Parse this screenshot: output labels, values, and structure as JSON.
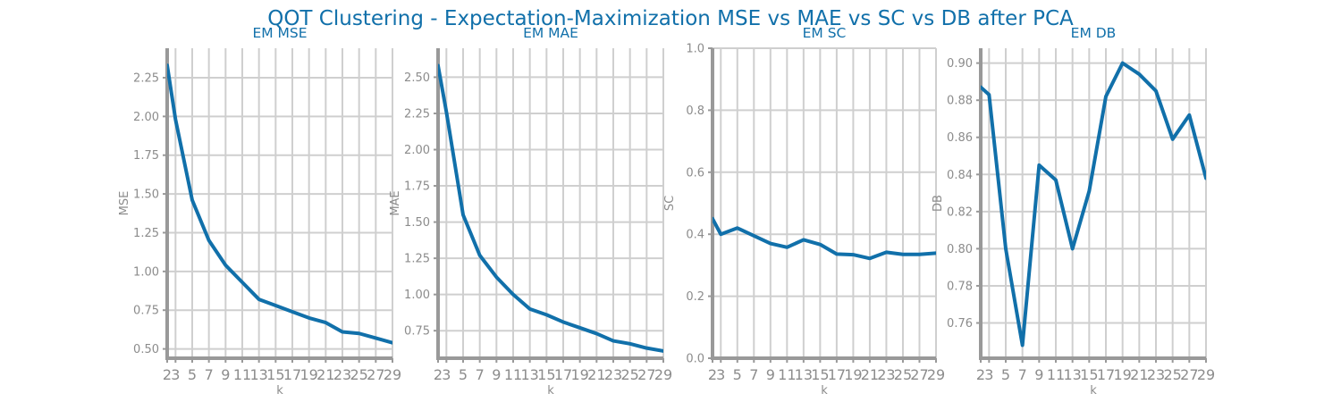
{
  "title": "QOT Clustering - Expectation-Maximization MSE vs MAE vs SC vs DB after PCA",
  "style": {
    "line_color": "#1170aa",
    "title_color": "#1170aa",
    "grid_color": "#cfcfcf",
    "spine_color": "#999999",
    "tick_color": "#8c8c8c"
  },
  "chart_data": [
    {
      "type": "line",
      "title": "EM MSE",
      "xlabel": "k",
      "ylabel": "MSE",
      "x": [
        2,
        3,
        5,
        7,
        9,
        11,
        13,
        15,
        17,
        19,
        21,
        23,
        25,
        27,
        29
      ],
      "y": [
        2.33,
        1.98,
        1.46,
        1.2,
        1.04,
        0.93,
        0.82,
        0.78,
        0.74,
        0.7,
        0.67,
        0.61,
        0.6,
        0.57,
        0.54
      ],
      "xticks": [
        2,
        3,
        5,
        7,
        9,
        11,
        13,
        15,
        17,
        19,
        21,
        23,
        25,
        27,
        29
      ],
      "yticks": [
        0.5,
        0.75,
        1.0,
        1.25,
        1.5,
        1.75,
        2.0,
        2.25
      ],
      "ytick_labels": [
        "0.50",
        "0.75",
        "1.00",
        "1.25",
        "1.50",
        "1.75",
        "2.00",
        "2.25"
      ],
      "xlim": [
        2,
        29
      ],
      "ylim": [
        0.44,
        2.44
      ],
      "grid": true
    },
    {
      "type": "line",
      "title": "EM MAE",
      "xlabel": "k",
      "ylabel": "MAE",
      "x": [
        2,
        3,
        5,
        7,
        9,
        11,
        13,
        15,
        17,
        19,
        21,
        23,
        25,
        27,
        29
      ],
      "y": [
        2.58,
        2.26,
        1.55,
        1.27,
        1.12,
        1.0,
        0.9,
        0.86,
        0.81,
        0.77,
        0.73,
        0.68,
        0.66,
        0.63,
        0.61
      ],
      "xticks": [
        2,
        3,
        5,
        7,
        9,
        11,
        13,
        15,
        17,
        19,
        21,
        23,
        25,
        27,
        29
      ],
      "yticks": [
        0.75,
        1.0,
        1.25,
        1.5,
        1.75,
        2.0,
        2.25,
        2.5
      ],
      "ytick_labels": [
        "0.75",
        "1.00",
        "1.25",
        "1.50",
        "1.75",
        "2.00",
        "2.25",
        "2.50"
      ],
      "xlim": [
        2,
        29
      ],
      "ylim": [
        0.56,
        2.7
      ],
      "grid": true
    },
    {
      "type": "line",
      "title": "EM SC",
      "xlabel": "k",
      "ylabel": "SC",
      "x": [
        2,
        3,
        5,
        7,
        9,
        11,
        13,
        15,
        17,
        19,
        21,
        23,
        25,
        27,
        29
      ],
      "y": [
        0.45,
        0.4,
        0.42,
        0.395,
        0.37,
        0.358,
        0.382,
        0.367,
        0.336,
        0.334,
        0.322,
        0.342,
        0.335,
        0.335,
        0.339
      ],
      "xticks": [
        2,
        3,
        5,
        7,
        9,
        11,
        13,
        15,
        17,
        19,
        21,
        23,
        25,
        27,
        29
      ],
      "yticks": [
        0.0,
        0.2,
        0.4,
        0.6,
        0.8,
        1.0
      ],
      "ytick_labels": [
        "0.0",
        "0.2",
        "0.4",
        "0.6",
        "0.8",
        "1.0"
      ],
      "xlim": [
        2,
        29
      ],
      "ylim": [
        0,
        1
      ],
      "grid": true
    },
    {
      "type": "line",
      "title": "EM DB",
      "xlabel": "k",
      "ylabel": "DB",
      "x": [
        2,
        3,
        5,
        7,
        9,
        11,
        13,
        15,
        17,
        19,
        21,
        23,
        25,
        27,
        29
      ],
      "y": [
        0.887,
        0.883,
        0.8,
        0.748,
        0.845,
        0.837,
        0.8,
        0.831,
        0.882,
        0.9,
        0.894,
        0.885,
        0.859,
        0.872,
        0.838
      ],
      "xticks": [
        2,
        3,
        5,
        7,
        9,
        11,
        13,
        15,
        17,
        19,
        21,
        23,
        25,
        27,
        29
      ],
      "yticks": [
        0.76,
        0.78,
        0.8,
        0.82,
        0.84,
        0.86,
        0.88,
        0.9
      ],
      "ytick_labels": [
        "0.76",
        "0.78",
        "0.80",
        "0.82",
        "0.84",
        "0.86",
        "0.88",
        "0.90"
      ],
      "xlim": [
        2,
        29
      ],
      "ylim": [
        0.741,
        0.908
      ],
      "grid": true
    }
  ]
}
